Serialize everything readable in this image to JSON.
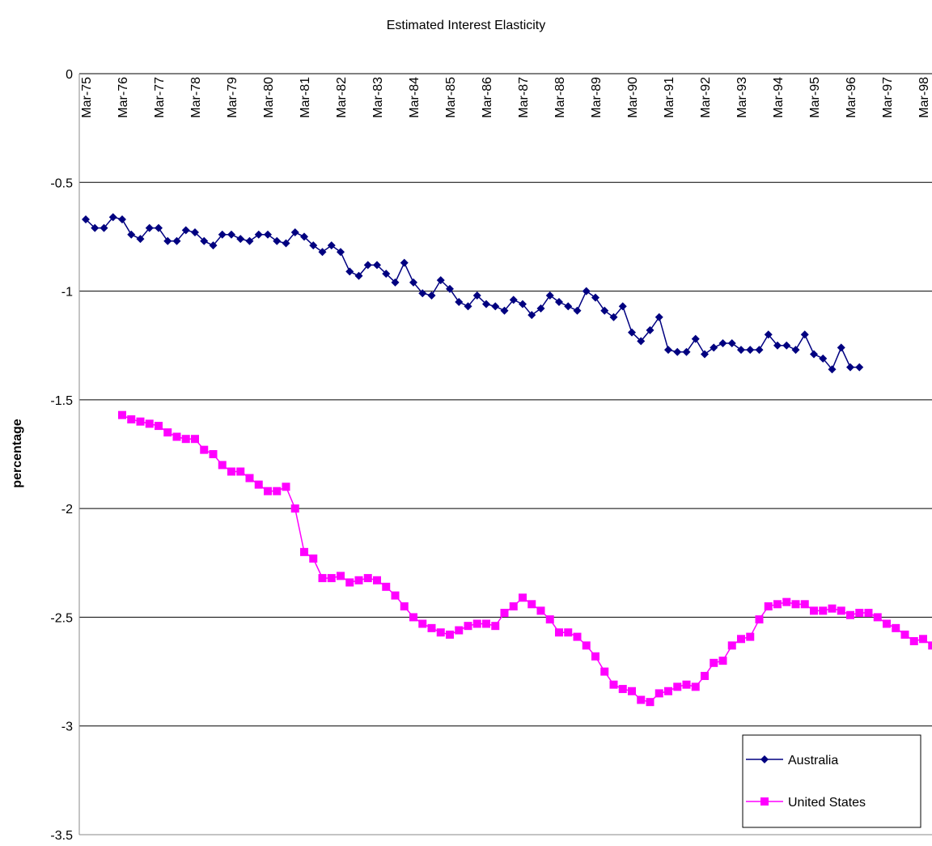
{
  "chart_data": {
    "type": "line",
    "title": "Estimated Interest Elasticity",
    "y_label": "percentage",
    "categories": [
      "Mar-75",
      null,
      null,
      null,
      "Mar-76",
      null,
      null,
      null,
      "Mar-77",
      null,
      null,
      null,
      "Mar-78",
      null,
      null,
      null,
      "Mar-79",
      null,
      null,
      null,
      "Mar-80",
      null,
      null,
      null,
      "Mar-81",
      null,
      null,
      null,
      "Mar-82",
      null,
      null,
      null,
      "Mar-83",
      null,
      null,
      null,
      "Mar-84",
      null,
      null,
      null,
      "Mar-85",
      null,
      null,
      null,
      "Mar-86",
      null,
      null,
      null,
      "Mar-87",
      null,
      null,
      null,
      "Mar-88",
      null,
      null,
      null,
      "Mar-89",
      null,
      null,
      null,
      "Mar-90",
      null,
      null,
      null,
      "Mar-91",
      null,
      null,
      null,
      "Mar-92",
      null,
      null,
      null,
      "Mar-93",
      null,
      null,
      null,
      "Mar-94",
      null,
      null,
      null,
      "Mar-95",
      null,
      null,
      null,
      "Mar-96",
      null,
      null,
      null,
      "Mar-97",
      null,
      null,
      null,
      "Mar-98",
      null
    ],
    "series": [
      {
        "name": "Australia",
        "color": "#000080",
        "marker": "diamond",
        "values": [
          -0.67,
          -0.71,
          -0.71,
          -0.66,
          -0.67,
          -0.74,
          -0.76,
          -0.71,
          -0.71,
          -0.77,
          -0.77,
          -0.72,
          -0.73,
          -0.77,
          -0.79,
          -0.74,
          -0.74,
          -0.76,
          -0.77,
          -0.74,
          -0.74,
          -0.77,
          -0.78,
          -0.73,
          -0.75,
          -0.79,
          -0.82,
          -0.79,
          -0.82,
          -0.91,
          -0.93,
          -0.88,
          -0.88,
          -0.92,
          -0.96,
          -0.87,
          -0.96,
          -1.01,
          -1.02,
          -0.95,
          -0.99,
          -1.05,
          -1.07,
          -1.02,
          -1.06,
          -1.07,
          -1.09,
          -1.04,
          -1.06,
          -1.11,
          -1.08,
          -1.02,
          -1.05,
          -1.07,
          -1.09,
          -1.0,
          -1.03,
          -1.09,
          -1.12,
          -1.07,
          -1.19,
          -1.23,
          -1.18,
          -1.12,
          -1.27,
          -1.28,
          -1.28,
          -1.22,
          -1.29,
          -1.26,
          -1.24,
          -1.24,
          -1.27,
          -1.27,
          -1.27,
          -1.2,
          -1.25,
          -1.25,
          -1.27,
          -1.2,
          -1.29,
          -1.31,
          -1.36,
          -1.26,
          -1.35,
          -1.35,
          null,
          null,
          null,
          null,
          null,
          null,
          null,
          null
        ]
      },
      {
        "name": "United States",
        "color": "#FF00FF",
        "marker": "square",
        "values": [
          null,
          null,
          null,
          null,
          -1.57,
          -1.59,
          -1.6,
          -1.61,
          -1.62,
          -1.65,
          -1.67,
          -1.68,
          -1.68,
          -1.73,
          -1.75,
          -1.8,
          -1.83,
          -1.83,
          -1.86,
          -1.89,
          -1.92,
          -1.92,
          -1.9,
          -2.0,
          -2.2,
          -2.23,
          -2.32,
          -2.32,
          -2.31,
          -2.34,
          -2.33,
          -2.32,
          -2.33,
          -2.36,
          -2.4,
          -2.45,
          -2.5,
          -2.53,
          -2.55,
          -2.57,
          -2.58,
          -2.56,
          -2.54,
          -2.53,
          -2.53,
          -2.54,
          -2.48,
          -2.45,
          -2.41,
          -2.44,
          -2.47,
          -2.51,
          -2.57,
          -2.57,
          -2.59,
          -2.63,
          -2.68,
          -2.75,
          -2.81,
          -2.83,
          -2.84,
          -2.88,
          -2.89,
          -2.85,
          -2.84,
          -2.82,
          -2.81,
          -2.82,
          -2.77,
          -2.71,
          -2.7,
          -2.63,
          -2.6,
          -2.59,
          -2.51,
          -2.45,
          -2.44,
          -2.43,
          -2.44,
          -2.44,
          -2.47,
          -2.47,
          -2.46,
          -2.47,
          -2.49,
          -2.48,
          -2.48,
          -2.5,
          -2.53,
          -2.55,
          -2.58,
          -2.61,
          -2.6,
          -2.63
        ]
      }
    ],
    "ylim": [
      -3.5,
      0
    ],
    "yticks": [
      0,
      -0.5,
      -1,
      -1.5,
      -2,
      -2.5,
      -3,
      -3.5
    ],
    "grid": true,
    "legend": "lower right"
  }
}
